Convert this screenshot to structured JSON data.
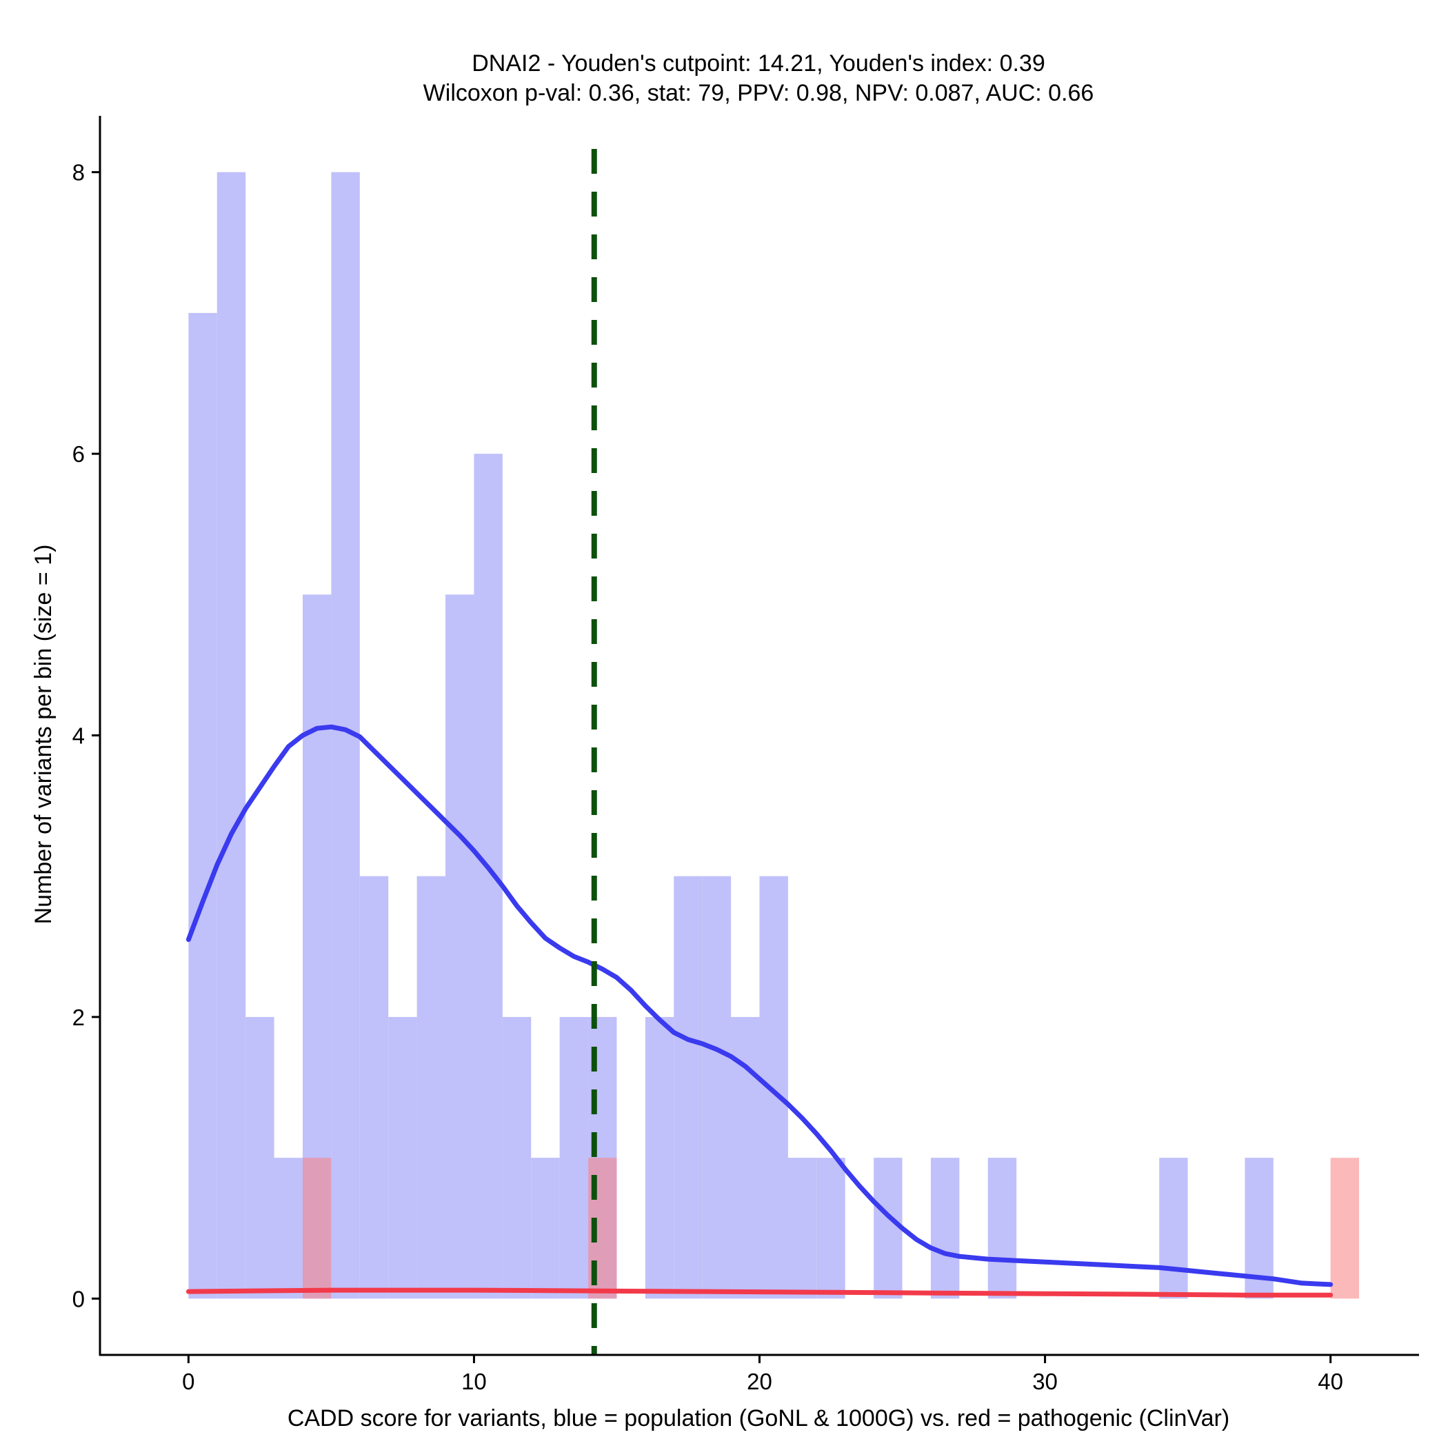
{
  "chart_data": {
    "type": "histogram",
    "title_line1": "DNAI2 - Youden's cutpoint: 14.21, Youden's index: 0.39",
    "title_line2": "Wilcoxon p-val: 0.36, stat: 79, PPV: 0.98, NPV: 0.087, AUC: 0.66",
    "xlabel": "CADD score for variants, blue = population (GoNL & 1000G) vs. red = pathogenic (ClinVar)",
    "ylabel": "Number of variants per bin (size = 1)",
    "xlim": [
      -3.1,
      43.1
    ],
    "ylim": [
      -0.4,
      8.4
    ],
    "x_ticks": [
      0,
      10,
      20,
      30,
      40
    ],
    "y_ticks": [
      0,
      2,
      4,
      6,
      8
    ],
    "bin_size": 1,
    "cutpoint": 14.21,
    "colors": {
      "population_bar": "#c0c0fa",
      "pathogenic_bar": "#fa8080",
      "population_line": "#3a3aef",
      "pathogenic_line": "#f23a4a",
      "cutpoint_line": "#0c500c"
    },
    "series": [
      {
        "name": "population (GoNL & 1000G)",
        "bins": [
          {
            "x": 0,
            "count": 7
          },
          {
            "x": 1,
            "count": 8
          },
          {
            "x": 2,
            "count": 2
          },
          {
            "x": 3,
            "count": 1
          },
          {
            "x": 4,
            "count": 5
          },
          {
            "x": 5,
            "count": 8
          },
          {
            "x": 6,
            "count": 3
          },
          {
            "x": 7,
            "count": 2
          },
          {
            "x": 8,
            "count": 3
          },
          {
            "x": 9,
            "count": 5
          },
          {
            "x": 10,
            "count": 6
          },
          {
            "x": 11,
            "count": 2
          },
          {
            "x": 12,
            "count": 1
          },
          {
            "x": 13,
            "count": 2
          },
          {
            "x": 14,
            "count": 2
          },
          {
            "x": 16,
            "count": 2
          },
          {
            "x": 17,
            "count": 3
          },
          {
            "x": 18,
            "count": 3
          },
          {
            "x": 19,
            "count": 2
          },
          {
            "x": 20,
            "count": 3
          },
          {
            "x": 21,
            "count": 1
          },
          {
            "x": 22,
            "count": 1
          },
          {
            "x": 24,
            "count": 1
          },
          {
            "x": 26,
            "count": 1
          },
          {
            "x": 28,
            "count": 1
          },
          {
            "x": 34,
            "count": 1
          },
          {
            "x": 37,
            "count": 1
          }
        ],
        "density_curve": [
          [
            0,
            2.55
          ],
          [
            0.5,
            2.82
          ],
          [
            1,
            3.08
          ],
          [
            1.5,
            3.3
          ],
          [
            2,
            3.48
          ],
          [
            2.5,
            3.63
          ],
          [
            3,
            3.78
          ],
          [
            3.5,
            3.92
          ],
          [
            4,
            4.0
          ],
          [
            4.5,
            4.05
          ],
          [
            5,
            4.06
          ],
          [
            5.5,
            4.04
          ],
          [
            6,
            3.99
          ],
          [
            6.5,
            3.89
          ],
          [
            7,
            3.79
          ],
          [
            7.5,
            3.69
          ],
          [
            8,
            3.59
          ],
          [
            8.5,
            3.49
          ],
          [
            9,
            3.39
          ],
          [
            9.5,
            3.29
          ],
          [
            10,
            3.18
          ],
          [
            10.5,
            3.06
          ],
          [
            11,
            2.93
          ],
          [
            11.5,
            2.79
          ],
          [
            12,
            2.67
          ],
          [
            12.5,
            2.56
          ],
          [
            13,
            2.49
          ],
          [
            13.5,
            2.43
          ],
          [
            14,
            2.39
          ],
          [
            14.5,
            2.34
          ],
          [
            15,
            2.28
          ],
          [
            15.5,
            2.19
          ],
          [
            16,
            2.08
          ],
          [
            16.5,
            1.98
          ],
          [
            17,
            1.89
          ],
          [
            17.5,
            1.84
          ],
          [
            18,
            1.81
          ],
          [
            18.5,
            1.77
          ],
          [
            19,
            1.72
          ],
          [
            19.5,
            1.65
          ],
          [
            20,
            1.56
          ],
          [
            20.5,
            1.47
          ],
          [
            21,
            1.38
          ],
          [
            21.5,
            1.28
          ],
          [
            22,
            1.17
          ],
          [
            22.5,
            1.05
          ],
          [
            23,
            0.92
          ],
          [
            23.5,
            0.8
          ],
          [
            24,
            0.69
          ],
          [
            24.5,
            0.59
          ],
          [
            25,
            0.5
          ],
          [
            25.5,
            0.42
          ],
          [
            26,
            0.36
          ],
          [
            26.5,
            0.32
          ],
          [
            27,
            0.3
          ],
          [
            27.5,
            0.29
          ],
          [
            28,
            0.28
          ],
          [
            29,
            0.27
          ],
          [
            30,
            0.26
          ],
          [
            31,
            0.25
          ],
          [
            32,
            0.24
          ],
          [
            33,
            0.23
          ],
          [
            34,
            0.22
          ],
          [
            35,
            0.2
          ],
          [
            36,
            0.18
          ],
          [
            37,
            0.16
          ],
          [
            38,
            0.14
          ],
          [
            39,
            0.11
          ],
          [
            40,
            0.1
          ]
        ]
      },
      {
        "name": "pathogenic (ClinVar)",
        "bins": [
          {
            "x": 4,
            "count": 1
          },
          {
            "x": 14,
            "count": 1
          },
          {
            "x": 40,
            "count": 1
          }
        ],
        "density_curve": [
          [
            0,
            0.05
          ],
          [
            5,
            0.06
          ],
          [
            10,
            0.06
          ],
          [
            14,
            0.055
          ],
          [
            18,
            0.05
          ],
          [
            22,
            0.045
          ],
          [
            26,
            0.04
          ],
          [
            30,
            0.035
          ],
          [
            34,
            0.03
          ],
          [
            37,
            0.025
          ],
          [
            40,
            0.025
          ]
        ]
      }
    ]
  }
}
